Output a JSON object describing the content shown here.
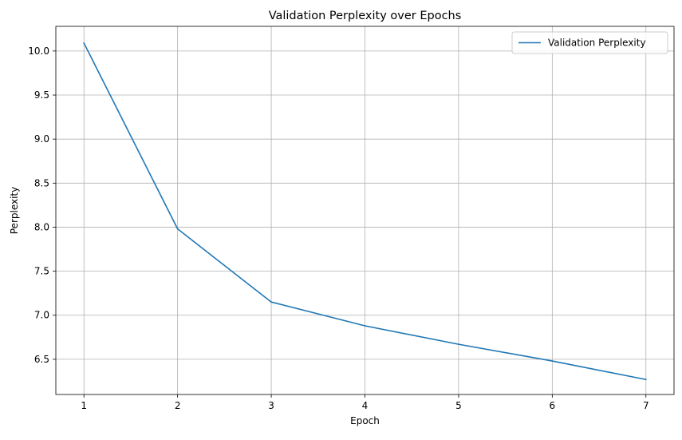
{
  "chart_data": {
    "type": "line",
    "title": "Validation Perplexity over Epochs",
    "xlabel": "Epoch",
    "ylabel": "Perplexity",
    "x": [
      1,
      2,
      3,
      4,
      5,
      6,
      7
    ],
    "series": [
      {
        "name": "Validation Perplexity",
        "values": [
          10.09,
          7.98,
          7.15,
          6.88,
          6.67,
          6.48,
          6.27
        ],
        "color": "#1f77b4"
      }
    ],
    "xticks": [
      1,
      2,
      3,
      4,
      5,
      6,
      7
    ],
    "xtick_labels": [
      "1",
      "2",
      "3",
      "4",
      "5",
      "6",
      "7"
    ],
    "yticks": [
      6.5,
      7.0,
      7.5,
      8.0,
      8.5,
      9.0,
      9.5,
      10.0
    ],
    "ytick_labels": [
      "6.5",
      "7.0",
      "7.5",
      "8.0",
      "8.5",
      "9.0",
      "9.5",
      "10.0"
    ],
    "xlim": [
      0.7,
      7.3
    ],
    "ylim": [
      6.1,
      10.28
    ],
    "grid": true,
    "legend_position": "top-right"
  }
}
